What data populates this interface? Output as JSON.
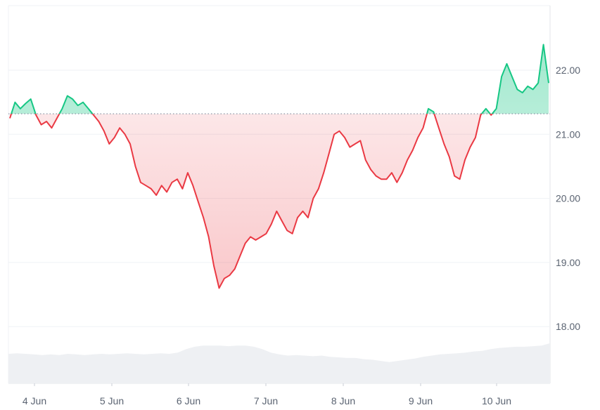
{
  "chart_data": {
    "type": "line",
    "title": "",
    "xlabel": "",
    "ylabel": "",
    "x_range": [
      "3 Jun 21:00",
      "10 Jun 17:00"
    ],
    "ylim": [
      17.0,
      22.9
    ],
    "y_ticks": [
      "22.00",
      "21.00",
      "20.00",
      "19.00",
      "18.00"
    ],
    "y_tick_values": [
      22,
      21,
      20,
      19,
      18
    ],
    "x_ticks": [
      "4 Jun",
      "5 Jun",
      "6 Jun",
      "7 Jun",
      "8 Jun",
      "9 Jun",
      "10 Jun"
    ],
    "baseline": 21.32,
    "grid": "horizontal",
    "colors": {
      "up": "#16c784",
      "down": "#ea3943",
      "volume": "#eef0f3",
      "grid": "#eff2f5",
      "baseline": "#808a9d"
    },
    "series": [
      {
        "values": [
          21.25,
          21.5,
          21.4,
          21.48,
          21.55,
          21.3,
          21.15,
          21.2,
          21.1,
          21.25,
          21.4,
          21.6,
          21.55,
          21.45,
          21.5,
          21.4,
          21.3,
          21.2,
          21.05,
          20.85,
          20.95,
          21.1,
          21.0,
          20.85,
          20.5,
          20.25,
          20.2,
          20.15,
          20.05,
          20.2,
          20.1,
          20.25,
          20.3,
          20.15,
          20.4,
          20.2,
          19.95,
          19.7,
          19.4,
          18.95,
          18.6,
          18.75,
          18.8,
          18.9,
          19.1,
          19.3,
          19.4,
          19.35,
          19.4,
          19.45,
          19.6,
          19.8,
          19.65,
          19.5,
          19.45,
          19.7,
          19.8,
          19.7,
          20.0,
          20.15,
          20.4,
          20.7,
          21.0,
          21.05,
          20.95,
          20.8,
          20.85,
          20.9,
          20.6,
          20.45,
          20.35,
          20.3,
          20.3,
          20.4,
          20.25,
          20.4,
          20.6,
          20.75,
          20.95,
          21.1,
          21.4,
          21.35,
          21.1,
          20.85,
          20.65,
          20.35,
          20.3,
          20.6,
          20.8,
          20.95,
          21.3,
          21.4,
          21.3,
          21.4,
          21.9,
          22.1,
          21.9,
          21.7,
          21.65,
          21.75,
          21.7,
          21.8,
          22.4,
          21.8
        ]
      }
    ],
    "volume": [
      0.5,
      0.51,
      0.5,
      0.49,
      0.48,
      0.49,
      0.48,
      0.5,
      0.49,
      0.48,
      0.49,
      0.5,
      0.49,
      0.5,
      0.51,
      0.5,
      0.49,
      0.5,
      0.51,
      0.5,
      0.52,
      0.58,
      0.62,
      0.64,
      0.64,
      0.64,
      0.63,
      0.64,
      0.64,
      0.62,
      0.58,
      0.52,
      0.49,
      0.47,
      0.48,
      0.47,
      0.46,
      0.47,
      0.45,
      0.44,
      0.43,
      0.43,
      0.41,
      0.4,
      0.38,
      0.36,
      0.38,
      0.4,
      0.42,
      0.45,
      0.47,
      0.49,
      0.5,
      0.51,
      0.52,
      0.54,
      0.55,
      0.58,
      0.6,
      0.61,
      0.62,
      0.62,
      0.63,
      0.64,
      0.68
    ]
  }
}
